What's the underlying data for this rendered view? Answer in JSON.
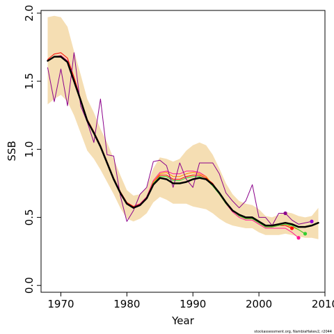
{
  "chart_data": {
    "type": "line",
    "xlabel": "Year",
    "ylabel": "SSB",
    "xlim": [
      1967,
      2010
    ],
    "ylim": [
      -0.05,
      2.02
    ],
    "xticks": [
      "1970",
      "1980",
      "1990",
      "2000",
      "2010"
    ],
    "yticks": [
      "0.0",
      "0.5",
      "1.0",
      "1.5",
      "2.0"
    ],
    "grid": false,
    "legend": "none",
    "footnote": "stockassessment.org, NambiaHakev2, r2044",
    "confidence_band": {
      "color": "#f5deb3",
      "x": [
        1968,
        1969,
        1970,
        1971,
        1972,
        1973,
        1974,
        1975,
        1976,
        1977,
        1978,
        1979,
        1980,
        1981,
        1982,
        1983,
        1984,
        1985,
        1986,
        1987,
        1988,
        1989,
        1990,
        1991,
        1992,
        1993,
        1994,
        1995,
        1996,
        1997,
        1998,
        1999,
        2000,
        2001,
        2002,
        2003,
        2004,
        2005,
        2006,
        2007,
        2008,
        2009
      ],
      "upper": [
        1.97,
        1.98,
        1.97,
        1.9,
        1.72,
        1.55,
        1.37,
        1.27,
        1.15,
        1.05,
        0.93,
        0.81,
        0.7,
        0.66,
        0.67,
        0.72,
        0.86,
        0.94,
        0.93,
        0.91,
        0.93,
        0.99,
        1.03,
        1.05,
        1.03,
        0.96,
        0.86,
        0.75,
        0.67,
        0.62,
        0.6,
        0.59,
        0.56,
        0.51,
        0.5,
        0.52,
        0.54,
        0.53,
        0.51,
        0.5,
        0.51,
        0.57
      ],
      "lower": [
        1.33,
        1.37,
        1.4,
        1.35,
        1.25,
        1.12,
        0.99,
        0.93,
        0.85,
        0.76,
        0.67,
        0.57,
        0.49,
        0.47,
        0.49,
        0.53,
        0.61,
        0.65,
        0.63,
        0.6,
        0.6,
        0.6,
        0.58,
        0.57,
        0.56,
        0.53,
        0.49,
        0.46,
        0.44,
        0.43,
        0.42,
        0.42,
        0.39,
        0.37,
        0.37,
        0.37,
        0.38,
        0.37,
        0.36,
        0.35,
        0.35,
        0.34
      ]
    },
    "series": [
      {
        "color": "#000000",
        "width": 2.5,
        "x": [
          1968,
          1969,
          1970,
          1971,
          1972,
          1973,
          1974,
          1975,
          1976,
          1977,
          1978,
          1979,
          1980,
          1981,
          1982,
          1983,
          1984,
          1985,
          1986,
          1987,
          1988,
          1989,
          1990,
          1991,
          1992,
          1993,
          1994,
          1995,
          1996,
          1997,
          1998,
          1999,
          2000,
          2001,
          2002,
          2003,
          2004,
          2005,
          2006,
          2007,
          2008,
          2009
        ],
        "y": [
          1.65,
          1.68,
          1.68,
          1.64,
          1.5,
          1.36,
          1.21,
          1.12,
          1.02,
          0.9,
          0.78,
          0.68,
          0.6,
          0.57,
          0.59,
          0.64,
          0.74,
          0.79,
          0.78,
          0.75,
          0.75,
          0.76,
          0.78,
          0.79,
          0.78,
          0.74,
          0.68,
          0.61,
          0.55,
          0.52,
          0.5,
          0.5,
          0.47,
          0.44,
          0.44,
          0.45,
          0.46,
          0.45,
          0.43,
          0.43,
          0.44,
          0.46
        ]
      },
      {
        "color": "#ff0000",
        "width": 1,
        "x": [
          1968,
          1969,
          1970,
          1971,
          1972,
          1973,
          1974,
          1975,
          1976,
          1977,
          1978,
          1979,
          1980,
          1981,
          1982,
          1983,
          1984,
          1985,
          1986,
          1987,
          1988,
          1989,
          1990,
          1991,
          1992,
          1993,
          1994,
          1995,
          1996,
          1997,
          1998,
          1999,
          2000,
          2001,
          2002,
          2003,
          2004,
          2005
        ],
        "y": [
          1.66,
          1.7,
          1.71,
          1.67,
          1.53,
          1.37,
          1.22,
          1.13,
          1.03,
          0.91,
          0.79,
          0.69,
          0.61,
          0.58,
          0.6,
          0.65,
          0.76,
          0.81,
          0.81,
          0.78,
          0.78,
          0.8,
          0.81,
          0.81,
          0.79,
          0.75,
          0.68,
          0.61,
          0.55,
          0.51,
          0.49,
          0.49,
          0.46,
          0.43,
          0.43,
          0.44,
          0.44,
          0.42
        ]
      },
      {
        "color": "#ff1493",
        "width": 1,
        "x": [
          1968,
          1969,
          1970,
          1971,
          1972,
          1973,
          1974,
          1975,
          1976,
          1977,
          1978,
          1979,
          1980,
          1981,
          1982,
          1983,
          1984,
          1985,
          1986,
          1987,
          1988,
          1989,
          1990,
          1991,
          1992,
          1993,
          1994,
          1995,
          1996,
          1997,
          1998,
          1999,
          2000,
          2001,
          2002,
          2003,
          2004,
          2005,
          2006
        ],
        "y": [
          1.65,
          1.68,
          1.69,
          1.65,
          1.51,
          1.36,
          1.21,
          1.12,
          1.02,
          0.9,
          0.78,
          0.68,
          0.6,
          0.57,
          0.6,
          0.65,
          0.77,
          0.83,
          0.84,
          0.82,
          0.82,
          0.84,
          0.84,
          0.83,
          0.8,
          0.74,
          0.67,
          0.6,
          0.54,
          0.5,
          0.48,
          0.48,
          0.45,
          0.42,
          0.42,
          0.42,
          0.42,
          0.39,
          0.35
        ]
      },
      {
        "color": "#ff8c00",
        "width": 1,
        "x": [
          1968,
          1969,
          1970,
          1971,
          1972,
          1973,
          1974,
          1975,
          1976,
          1977,
          1978,
          1979,
          1980,
          1981,
          1982,
          1983,
          1984,
          1985,
          1986,
          1987,
          1988,
          1989,
          1990,
          1991,
          1992,
          1993,
          1994,
          1995,
          1996,
          1997,
          1998,
          1999,
          2000,
          2001,
          2002,
          2003,
          2004,
          2005,
          2006,
          2007
        ],
        "y": [
          1.65,
          1.68,
          1.68,
          1.64,
          1.5,
          1.36,
          1.21,
          1.12,
          1.02,
          0.9,
          0.78,
          0.68,
          0.6,
          0.57,
          0.59,
          0.64,
          0.76,
          0.82,
          0.83,
          0.8,
          0.8,
          0.82,
          0.83,
          0.82,
          0.8,
          0.74,
          0.67,
          0.6,
          0.55,
          0.51,
          0.49,
          0.49,
          0.46,
          0.43,
          0.43,
          0.44,
          0.45,
          0.43,
          0.41,
          0.38
        ]
      },
      {
        "color": "#32cd32",
        "width": 1,
        "x": [
          1968,
          1969,
          1970,
          1971,
          1972,
          1973,
          1974,
          1975,
          1976,
          1977,
          1978,
          1979,
          1980,
          1981,
          1982,
          1983,
          1984,
          1985,
          1986,
          1987,
          1988,
          1989,
          1990,
          1991,
          1992,
          1993,
          1994,
          1995,
          1996,
          1997,
          1998,
          1999,
          2000,
          2001,
          2002,
          2003,
          2004,
          2005,
          2006,
          2007
        ],
        "y": [
          1.65,
          1.68,
          1.68,
          1.64,
          1.5,
          1.36,
          1.21,
          1.12,
          1.02,
          0.9,
          0.78,
          0.68,
          0.6,
          0.57,
          0.59,
          0.64,
          0.75,
          0.8,
          0.8,
          0.77,
          0.77,
          0.79,
          0.8,
          0.8,
          0.78,
          0.73,
          0.67,
          0.6,
          0.55,
          0.51,
          0.49,
          0.49,
          0.46,
          0.43,
          0.43,
          0.44,
          0.45,
          0.44,
          0.41,
          0.38
        ]
      },
      {
        "color": "#8b008b",
        "width": 1,
        "x": [
          1968,
          1969,
          1970,
          1971,
          1972,
          1973,
          1974,
          1975,
          1976,
          1977,
          1978,
          1979,
          1980,
          1981,
          1982,
          1983,
          1984,
          1985,
          1986,
          1987,
          1988,
          1989,
          1990,
          1991,
          1992,
          1993,
          1994,
          1995,
          1996,
          1997,
          1998,
          1999,
          2000,
          2001,
          2002,
          2003,
          2004,
          2005,
          2006,
          2007,
          2008
        ],
        "y": [
          1.6,
          1.35,
          1.59,
          1.32,
          1.71,
          1.32,
          1.2,
          1.05,
          1.37,
          0.96,
          0.95,
          0.66,
          0.47,
          0.55,
          0.67,
          0.72,
          0.91,
          0.92,
          0.88,
          0.72,
          0.9,
          0.78,
          0.72,
          0.9,
          0.9,
          0.9,
          0.82,
          0.68,
          0.62,
          0.57,
          0.62,
          0.74,
          0.5,
          0.5,
          0.44,
          0.53,
          0.53,
          0.48,
          0.45,
          0.46,
          0.47
        ]
      }
    ],
    "terminal_points": [
      {
        "x": 2004,
        "y": 0.53,
        "color": "#8b008b"
      },
      {
        "x": 2005,
        "y": 0.42,
        "color": "#ff0000"
      },
      {
        "x": 2006,
        "y": 0.35,
        "color": "#ff1493"
      },
      {
        "x": 2007,
        "y": 0.38,
        "color": "#32cd32"
      },
      {
        "x": 2008,
        "y": 0.47,
        "color": "#9400d3"
      }
    ]
  }
}
